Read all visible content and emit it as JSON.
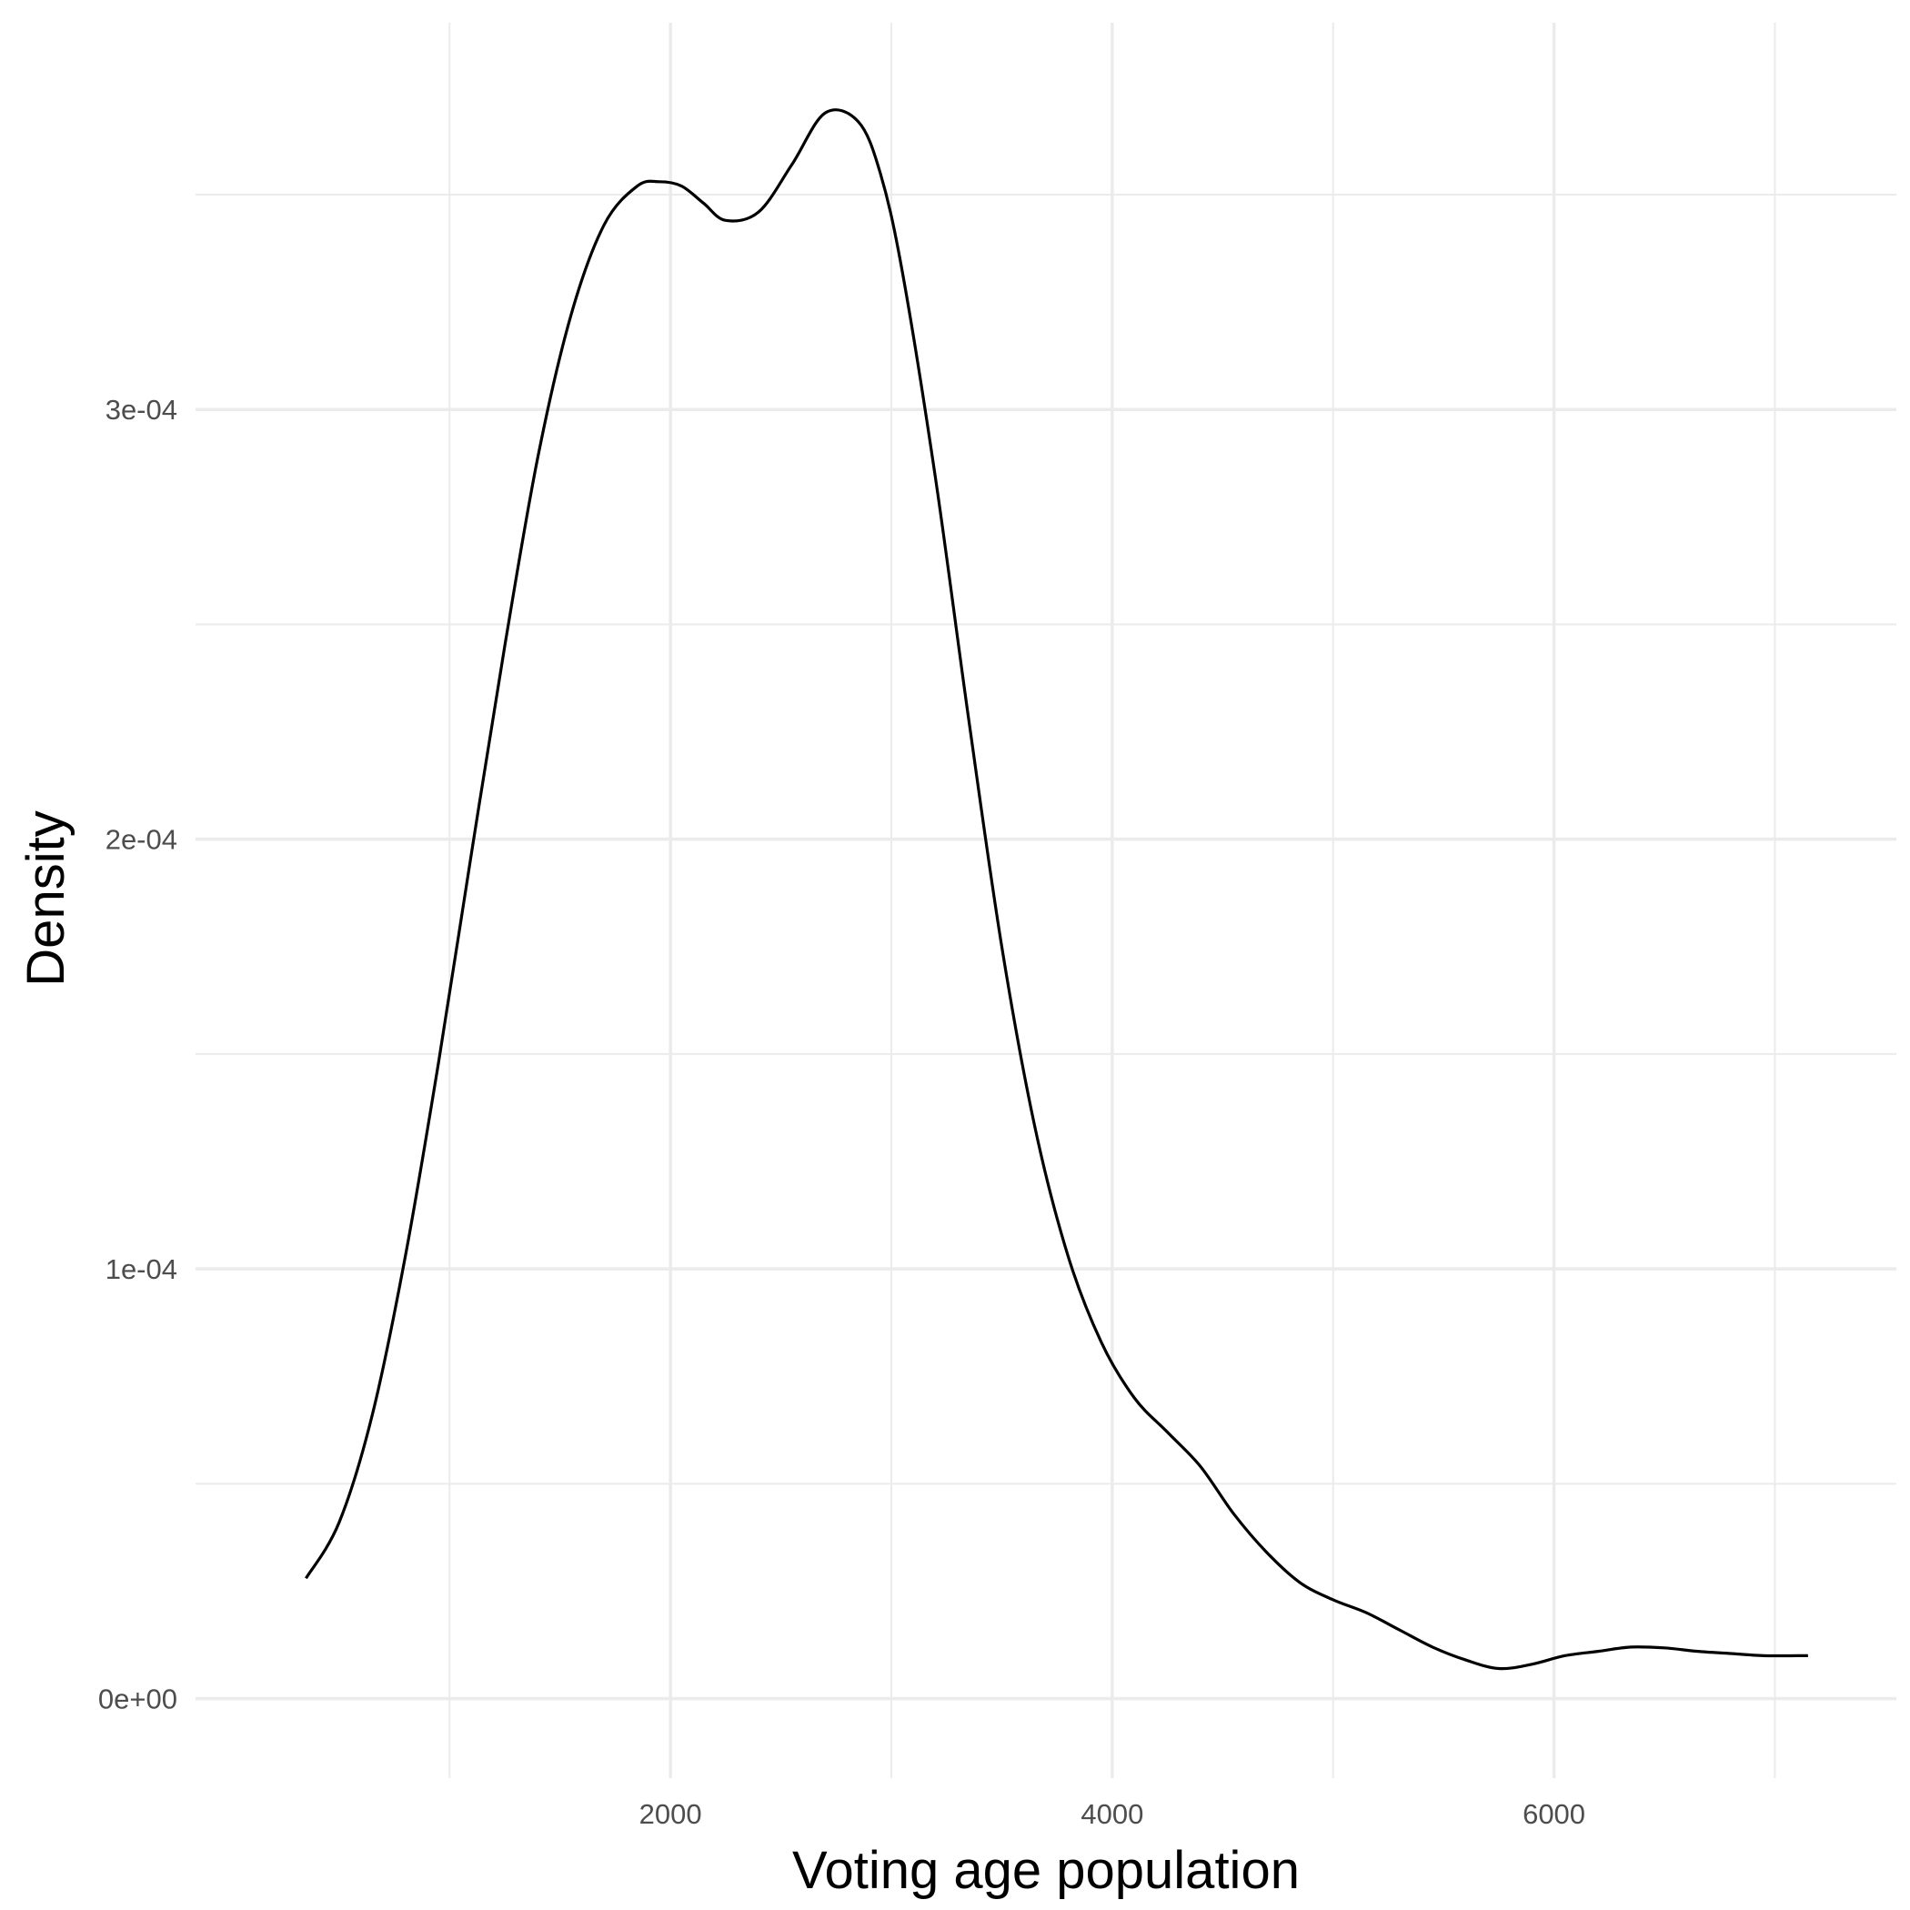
{
  "chart_data": {
    "type": "line",
    "title": "",
    "xlabel": "Voting age population",
    "ylabel": "Density",
    "xlim": [
      -150,
      7550
    ],
    "ylim": [
      -1.85e-05,
      0.00039
    ],
    "x_ticks": [
      2000,
      4000,
      6000
    ],
    "x_tick_labels": [
      "2000",
      "4000",
      "6000"
    ],
    "x_minor_ticks": [
      1000,
      3000,
      5000,
      7000
    ],
    "y_ticks": [
      0,
      0.0001,
      0.0002,
      0.0003
    ],
    "y_tick_labels": [
      "0e+00",
      "1e-04",
      "2e-04",
      "3e-04"
    ],
    "y_minor_ticks": [
      5e-05,
      0.00015,
      0.00025,
      0.00035
    ],
    "grid": true,
    "legend": "none",
    "line_color": "#000000",
    "grid_color": "#ebebeb",
    "series": [
      {
        "x": [
          350,
          500,
          650,
          800,
          950,
          1100,
          1250,
          1400,
          1550,
          1700,
          1850,
          1950,
          2050,
          2150,
          2250,
          2400,
          2550,
          2700,
          2850,
          2950,
          3050,
          3200,
          3350,
          3500,
          3650,
          3800,
          3950,
          4100,
          4250,
          4400,
          4550,
          4700,
          4850,
          5000,
          5150,
          5300,
          5450,
          5600,
          5750,
          5900,
          6050,
          6200,
          6350,
          6500,
          6650,
          6800,
          6950,
          7150
        ],
        "y": [
          2.8e-05,
          4.1e-05,
          6.6e-05,
          0.000103,
          0.000148,
          0.000197,
          0.000245,
          0.000289,
          0.000322,
          0.000343,
          0.000352,
          0.000353,
          0.000352,
          0.000348,
          0.000344,
          0.000346,
          0.000357,
          0.000369,
          0.000367,
          0.000355,
          0.000332,
          0.000284,
          0.000228,
          0.000175,
          0.000133,
          0.000103,
          8.3e-05,
          7e-05,
          6.2e-05,
          5.4e-05,
          4.3e-05,
          3.4e-05,
          2.7e-05,
          2.3e-05,
          2e-05,
          1.6e-05,
          1.2e-05,
          9e-06,
          7e-06,
          8e-06,
          1e-05,
          1.1e-05,
          1.2e-05,
          1.18e-05,
          1.1e-05,
          1.05e-05,
          1e-05,
          1e-05
        ]
      }
    ]
  }
}
